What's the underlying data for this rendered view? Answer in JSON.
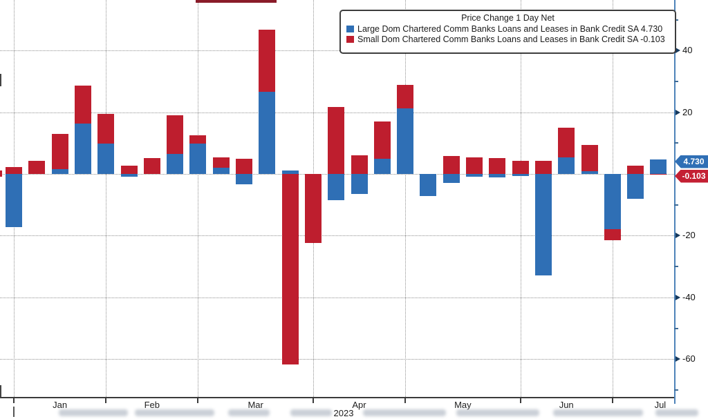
{
  "chart_data": {
    "type": "bar",
    "stacked": true,
    "title": "Price Change 1 Day Net",
    "series": [
      {
        "name": "Large Dom Chartered Comm Banks Loans and Leases in Bank Credit SA",
        "last_value": "4.730",
        "color": "#2f6fb5",
        "values": [
          -17.3,
          0,
          1.6,
          16.3,
          9.9,
          -1.0,
          0,
          6.5,
          9.9,
          2.1,
          -3.3,
          26.7,
          1.2,
          0,
          -8.6,
          -6.4,
          4.9,
          21.2,
          -7.2,
          -2.8,
          -0.8,
          -1.2,
          -0.6,
          -32.9,
          5.4,
          0.8,
          -18.0,
          -8.0,
          4.73
        ]
      },
      {
        "name": "Small Dom Chartered Comm Banks Loans and Leases in Bank Credit SA",
        "last_value": "-0.103",
        "color": "#be1e2e",
        "values": [
          2.3,
          4.2,
          11.4,
          12.3,
          9.6,
          2.6,
          5.1,
          12.5,
          2.7,
          3.3,
          4.9,
          20.1,
          -61.7,
          -22.4,
          21.7,
          6.0,
          12.2,
          7.7,
          0,
          5.8,
          5.4,
          5.1,
          4.3,
          4.2,
          9.5,
          8.7,
          -3.4,
          2.7,
          -0.103
        ]
      }
    ],
    "legend": {
      "title": "Price Change 1 Day Net",
      "position": "top-right",
      "entries": [
        {
          "label": "Large Dom Chartered Comm Banks Loans and Leases in Bank Credit SA 4.730",
          "color": "#2f6fb5"
        },
        {
          "label": "Small Dom Chartered Comm Banks Loans and Leases in Bank Credit SA -0.103",
          "color": "#be1e2e"
        }
      ]
    },
    "x_axis": {
      "year": "2023",
      "months": [
        "Jan",
        "Feb",
        "Mar",
        "Apr",
        "May",
        "Jun",
        "Jul"
      ],
      "month_start_weeks": [
        0,
        4,
        8,
        13,
        17,
        22,
        26
      ],
      "num_weeks": 29
    },
    "y_axis": {
      "side": "right",
      "major_ticks": [
        40,
        20,
        -20,
        -40,
        -60
      ],
      "minor_ticks": [
        50,
        30,
        10,
        -10,
        -30,
        -50,
        -70
      ],
      "ylim": [
        -72.5,
        56.4
      ],
      "grid": "dotted"
    }
  },
  "badges": [
    {
      "label": "4.730",
      "color": "#2f6fb5"
    },
    {
      "label": "-0.103",
      "color": "#c42033"
    }
  ]
}
